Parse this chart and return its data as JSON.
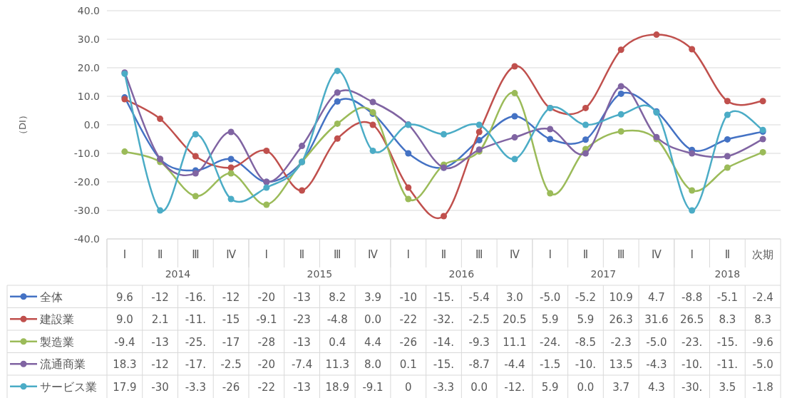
{
  "chart_data": {
    "type": "line",
    "ylabel": "（DI）",
    "categories": [
      "Ⅰ",
      "Ⅱ",
      "Ⅲ",
      "Ⅳ",
      "Ⅰ",
      "Ⅱ",
      "Ⅲ",
      "Ⅳ",
      "Ⅰ",
      "Ⅱ",
      "Ⅲ",
      "Ⅳ",
      "Ⅰ",
      "Ⅱ",
      "Ⅲ",
      "Ⅳ",
      "Ⅰ",
      "Ⅱ",
      "次期"
    ],
    "annotations": [
      "2014",
      "2015",
      "2016",
      "2017",
      "2018"
    ],
    "ylim": [
      -40,
      40
    ],
    "yticks": [
      {
        "value": -40,
        "label": "-40.0"
      },
      {
        "value": -30,
        "label": "-30.0"
      },
      {
        "value": -20,
        "label": "-20.0"
      },
      {
        "value": -10,
        "label": "-10.0"
      },
      {
        "value": 0,
        "label": "0.0"
      },
      {
        "value": 10,
        "label": "10.0"
      },
      {
        "value": 20,
        "label": "20.0"
      },
      {
        "value": 30,
        "label": "30.0"
      },
      {
        "value": 40,
        "label": "40.0"
      }
    ],
    "grid": "y",
    "legend": "bottom",
    "marker": "circle",
    "line_style": "solid",
    "series": [
      {
        "name": "全体",
        "color": "#4472c4",
        "values": [
          9.6,
          -12,
          -16,
          -12,
          -20,
          -13,
          8.2,
          3.9,
          -10,
          -15,
          -5.4,
          3.0,
          -5.0,
          -5.2,
          10.9,
          4.7,
          -8.8,
          -5.1,
          -2.4
        ],
        "value_labels": [
          "9.6",
          "-12",
          "-16.",
          "-12",
          "-20",
          "-13",
          "8.2",
          "3.9",
          "-10",
          "-15.",
          "-5.4",
          "3.0",
          "-5.0",
          "-5.2",
          "10.9",
          "4.7",
          "-8.8",
          "-5.1",
          "-2.4"
        ]
      },
      {
        "name": "建設業",
        "color": "#c0504d",
        "values": [
          9.0,
          2.1,
          -11,
          -15,
          -9.1,
          -23,
          -4.8,
          0.0,
          -22,
          -32,
          -2.5,
          20.5,
          5.9,
          5.9,
          26.3,
          31.6,
          26.5,
          8.3,
          8.3
        ],
        "value_labels": [
          "9.0",
          "2.1",
          "-11.",
          "-15",
          "-9.1",
          "-23",
          "-4.8",
          "0.0",
          "-22",
          "-32.",
          "-2.5",
          "20.5",
          "5.9",
          "5.9",
          "26.3",
          "31.6",
          "26.5",
          "8.3",
          "8.3"
        ]
      },
      {
        "name": "製造業",
        "color": "#9bbb59",
        "values": [
          -9.4,
          -13,
          -25,
          -17,
          -28,
          -13,
          0.4,
          4.4,
          -26,
          -14,
          -9.3,
          11.1,
          -24,
          -8.5,
          -2.3,
          -5.0,
          -23,
          -15,
          -9.6
        ],
        "value_labels": [
          "-9.4",
          "-13",
          "-25.",
          "-17",
          "-28",
          "-13",
          "0.4",
          "4.4",
          "-26",
          "-14.",
          "-9.3",
          "11.1",
          "-24.",
          "-8.5",
          "-2.3",
          "-5.0",
          "-23.",
          "-15.",
          "-9.6"
        ]
      },
      {
        "name": "流通商業",
        "color": "#8064a2",
        "values": [
          18.3,
          -12,
          -17,
          -2.5,
          -20,
          -7.4,
          11.3,
          8.0,
          0.1,
          -15,
          -8.7,
          -4.4,
          -1.5,
          -10,
          13.5,
          -4.3,
          -10,
          -11,
          -5.0
        ],
        "value_labels": [
          "18.3",
          "-12",
          "-17.",
          "-2.5",
          "-20",
          "-7.4",
          "11.3",
          "8.0",
          "0.1",
          "-15.",
          "-8.7",
          "-4.4",
          "-1.5",
          "-10.",
          "13.5",
          "-4.3",
          "-10.",
          "-11.",
          "-5.0"
        ]
      },
      {
        "name": "サービス業",
        "color": "#4bacc6",
        "values": [
          17.9,
          -30,
          -3.3,
          -26,
          -22,
          -13,
          18.9,
          -9.1,
          0,
          -3.3,
          0.0,
          -12,
          5.9,
          0.0,
          3.7,
          4.3,
          -30,
          3.5,
          -1.8
        ],
        "value_labels": [
          "17.9",
          "-30",
          "-3.3",
          "-26",
          "-22",
          "-13",
          "18.9",
          "-9.1",
          "0",
          "-3.3",
          "0.0",
          "-12.",
          "5.9",
          "0.0",
          "3.7",
          "4.3",
          "-30.",
          "3.5",
          "-1.8"
        ]
      }
    ]
  }
}
